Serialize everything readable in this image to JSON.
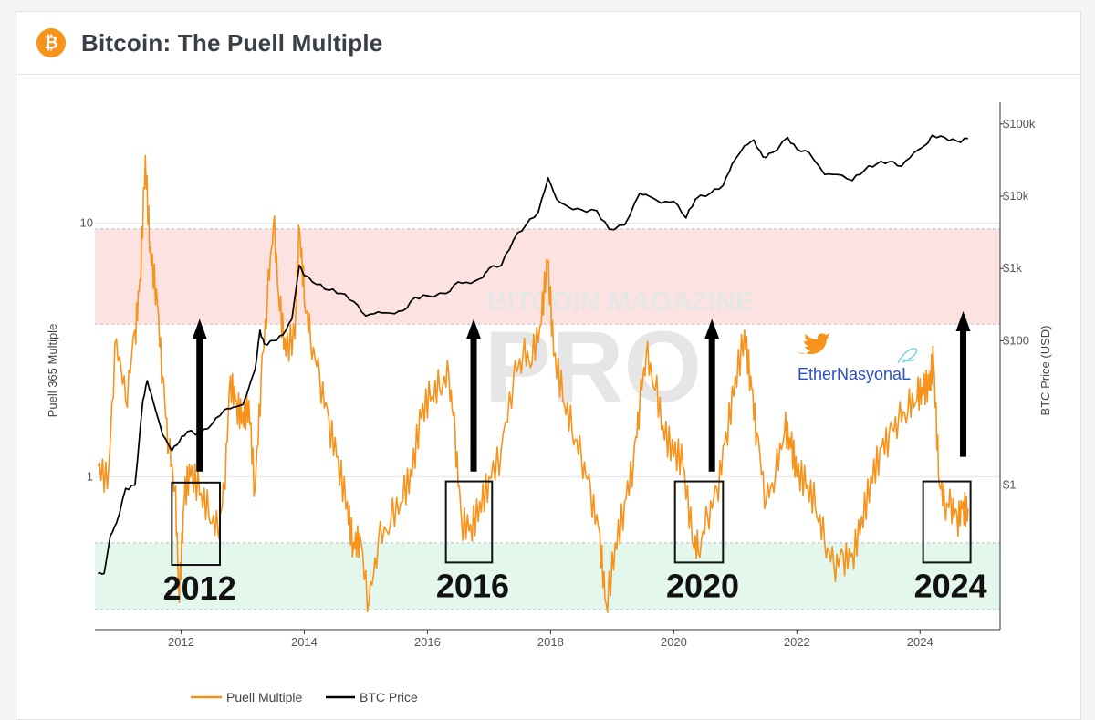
{
  "header": {
    "title": "Bitcoin: The Puell Multiple",
    "logo_color": "#f7931a",
    "logo_glyph": "₿",
    "logo_icon": "bitcoin-logo-icon"
  },
  "watermark": {
    "top_text": "BITCOIN MAGAZINE",
    "main_text": "PRO"
  },
  "annotation": {
    "text": "EtherNasyonaL",
    "bird_icon": "twitter-bird-icon",
    "bird_color": "#f7931a"
  },
  "chart_data": {
    "type": "line",
    "x_axis": {
      "ticks": [
        "2012",
        "2014",
        "2016",
        "2018",
        "2020",
        "2022",
        "2024"
      ],
      "range": [
        2010.6,
        2025.3
      ]
    },
    "y_left": {
      "label": "Puell 365 Multiple",
      "scale": "log",
      "ticks": [
        "10",
        "1"
      ],
      "range": [
        0.25,
        30
      ]
    },
    "y_right": {
      "label": "BTC Price (USD)",
      "scale": "log",
      "ticks": [
        "$100k",
        "$10k",
        "$1k",
        "$100",
        "$1"
      ],
      "range": [
        0.01,
        200000
      ]
    },
    "bands": [
      {
        "name": "overvalued",
        "range": [
          4,
          9.5
        ],
        "color": "#fde2e2"
      },
      {
        "name": "undervalued",
        "range": [
          0.3,
          0.55
        ],
        "color": "#e4f7ec"
      }
    ],
    "series": [
      {
        "name": "Puell Multiple",
        "color": "#f7931a",
        "axis": "left",
        "points": [
          [
            2010.65,
            1.1
          ],
          [
            2010.8,
            0.9
          ],
          [
            2010.95,
            3.5
          ],
          [
            2011.1,
            2.0
          ],
          [
            2011.25,
            3.8
          ],
          [
            2011.33,
            6.0
          ],
          [
            2011.42,
            18.5
          ],
          [
            2011.5,
            8.0
          ],
          [
            2011.6,
            5.5
          ],
          [
            2011.7,
            2.5
          ],
          [
            2011.8,
            1.3
          ],
          [
            2011.9,
            0.9
          ],
          [
            2011.97,
            0.32
          ],
          [
            2012.05,
            0.8
          ],
          [
            2012.15,
            1.0
          ],
          [
            2012.3,
            0.85
          ],
          [
            2012.45,
            0.7
          ],
          [
            2012.6,
            0.6
          ],
          [
            2012.7,
            0.9
          ],
          [
            2012.8,
            2.5
          ],
          [
            2012.9,
            2.0
          ],
          [
            2013.0,
            1.8
          ],
          [
            2013.1,
            2.0
          ],
          [
            2013.2,
            0.9
          ],
          [
            2013.3,
            2.5
          ],
          [
            2013.4,
            5.0
          ],
          [
            2013.5,
            10.0
          ],
          [
            2013.6,
            4.5
          ],
          [
            2013.7,
            3.0
          ],
          [
            2013.85,
            3.5
          ],
          [
            2013.92,
            9.5
          ],
          [
            2014.0,
            5.0
          ],
          [
            2014.1,
            3.5
          ],
          [
            2014.25,
            2.5
          ],
          [
            2014.4,
            1.7
          ],
          [
            2014.55,
            1.2
          ],
          [
            2014.7,
            0.8
          ],
          [
            2014.8,
            0.55
          ],
          [
            2014.9,
            0.6
          ],
          [
            2015.05,
            0.32
          ],
          [
            2015.2,
            0.55
          ],
          [
            2015.4,
            0.65
          ],
          [
            2015.6,
            0.8
          ],
          [
            2015.75,
            1.0
          ],
          [
            2015.9,
            1.7
          ],
          [
            2016.05,
            2.0
          ],
          [
            2016.2,
            2.2
          ],
          [
            2016.35,
            2.5
          ],
          [
            2016.45,
            1.5
          ],
          [
            2016.55,
            0.7
          ],
          [
            2016.7,
            0.65
          ],
          [
            2016.85,
            0.8
          ],
          [
            2017.0,
            1.0
          ],
          [
            2017.2,
            1.3
          ],
          [
            2017.4,
            2.5
          ],
          [
            2017.55,
            3.0
          ],
          [
            2017.7,
            2.8
          ],
          [
            2017.85,
            4.0
          ],
          [
            2017.95,
            7.0
          ],
          [
            2018.05,
            3.0
          ],
          [
            2018.2,
            2.0
          ],
          [
            2018.35,
            1.5
          ],
          [
            2018.5,
            1.2
          ],
          [
            2018.65,
            0.9
          ],
          [
            2018.8,
            0.6
          ],
          [
            2018.9,
            0.32
          ],
          [
            2019.05,
            0.55
          ],
          [
            2019.2,
            0.8
          ],
          [
            2019.35,
            1.2
          ],
          [
            2019.45,
            2.0
          ],
          [
            2019.55,
            3.0
          ],
          [
            2019.7,
            2.2
          ],
          [
            2019.85,
            1.4
          ],
          [
            2020.0,
            1.2
          ],
          [
            2020.15,
            1.1
          ],
          [
            2020.3,
            0.55
          ],
          [
            2020.4,
            0.5
          ],
          [
            2020.55,
            0.7
          ],
          [
            2020.7,
            0.9
          ],
          [
            2020.85,
            1.5
          ],
          [
            2021.0,
            2.5
          ],
          [
            2021.15,
            3.8
          ],
          [
            2021.25,
            2.5
          ],
          [
            2021.35,
            1.5
          ],
          [
            2021.5,
            0.8
          ],
          [
            2021.65,
            1.0
          ],
          [
            2021.8,
            1.5
          ],
          [
            2021.9,
            1.3
          ],
          [
            2022.0,
            1.0
          ],
          [
            2022.15,
            0.9
          ],
          [
            2022.3,
            0.75
          ],
          [
            2022.45,
            0.55
          ],
          [
            2022.6,
            0.45
          ],
          [
            2022.75,
            0.5
          ],
          [
            2022.9,
            0.5
          ],
          [
            2023.05,
            0.7
          ],
          [
            2023.2,
            1.0
          ],
          [
            2023.35,
            1.3
          ],
          [
            2023.5,
            1.5
          ],
          [
            2023.65,
            1.7
          ],
          [
            2023.8,
            1.8
          ],
          [
            2023.95,
            2.0
          ],
          [
            2024.05,
            2.1
          ],
          [
            2024.15,
            2.2
          ],
          [
            2024.22,
            2.8
          ],
          [
            2024.3,
            1.0
          ],
          [
            2024.4,
            0.75
          ],
          [
            2024.5,
            0.8
          ],
          [
            2024.6,
            0.7
          ],
          [
            2024.7,
            0.8
          ],
          [
            2024.78,
            0.75
          ]
        ]
      },
      {
        "name": "BTC Price",
        "color": "#000000",
        "axis": "right",
        "points": [
          [
            2010.65,
            0.06
          ],
          [
            2010.75,
            0.06
          ],
          [
            2010.85,
            0.2
          ],
          [
            2010.95,
            0.3
          ],
          [
            2011.1,
            0.9
          ],
          [
            2011.25,
            1.0
          ],
          [
            2011.38,
            15
          ],
          [
            2011.45,
            28
          ],
          [
            2011.55,
            14
          ],
          [
            2011.7,
            5
          ],
          [
            2011.85,
            3
          ],
          [
            2011.97,
            4
          ],
          [
            2012.1,
            5.5
          ],
          [
            2012.3,
            5
          ],
          [
            2012.5,
            7
          ],
          [
            2012.7,
            11
          ],
          [
            2012.85,
            12
          ],
          [
            2013.0,
            13
          ],
          [
            2013.2,
            40
          ],
          [
            2013.28,
            140
          ],
          [
            2013.35,
            90
          ],
          [
            2013.5,
            100
          ],
          [
            2013.65,
            120
          ],
          [
            2013.8,
            200
          ],
          [
            2013.92,
            1100
          ],
          [
            2014.0,
            800
          ],
          [
            2014.2,
            600
          ],
          [
            2014.4,
            500
          ],
          [
            2014.6,
            450
          ],
          [
            2014.8,
            350
          ],
          [
            2015.0,
            220
          ],
          [
            2015.2,
            250
          ],
          [
            2015.4,
            240
          ],
          [
            2015.6,
            260
          ],
          [
            2015.8,
            400
          ],
          [
            2016.0,
            420
          ],
          [
            2016.3,
            450
          ],
          [
            2016.5,
            650
          ],
          [
            2016.7,
            620
          ],
          [
            2016.9,
            750
          ],
          [
            2017.0,
            1000
          ],
          [
            2017.2,
            1100
          ],
          [
            2017.4,
            2500
          ],
          [
            2017.6,
            4000
          ],
          [
            2017.8,
            6000
          ],
          [
            2017.96,
            18000
          ],
          [
            2018.1,
            9000
          ],
          [
            2018.3,
            7000
          ],
          [
            2018.5,
            6500
          ],
          [
            2018.75,
            6300
          ],
          [
            2018.95,
            3500
          ],
          [
            2019.2,
            4000
          ],
          [
            2019.45,
            11000
          ],
          [
            2019.6,
            10000
          ],
          [
            2019.8,
            8000
          ],
          [
            2020.0,
            8500
          ],
          [
            2020.2,
            5000
          ],
          [
            2020.35,
            9000
          ],
          [
            2020.6,
            11000
          ],
          [
            2020.8,
            14000
          ],
          [
            2020.95,
            28000
          ],
          [
            2021.15,
            50000
          ],
          [
            2021.3,
            60000
          ],
          [
            2021.45,
            35000
          ],
          [
            2021.6,
            40000
          ],
          [
            2021.85,
            65000
          ],
          [
            2022.0,
            45000
          ],
          [
            2022.2,
            40000
          ],
          [
            2022.45,
            20000
          ],
          [
            2022.65,
            20000
          ],
          [
            2022.9,
            16500
          ],
          [
            2023.1,
            23000
          ],
          [
            2023.3,
            28000
          ],
          [
            2023.5,
            30000
          ],
          [
            2023.7,
            26000
          ],
          [
            2023.9,
            40000
          ],
          [
            2024.1,
            52000
          ],
          [
            2024.2,
            70000
          ],
          [
            2024.4,
            65000
          ],
          [
            2024.6,
            58000
          ],
          [
            2024.78,
            63000
          ]
        ]
      }
    ],
    "boxes": [
      {
        "x_range": [
          2011.85,
          2012.63
        ],
        "y_range": [
          0.45,
          0.95
        ],
        "label": "2012"
      },
      {
        "x_range": [
          2016.3,
          2017.05
        ],
        "y_range": [
          0.46,
          0.96
        ],
        "label": "2016"
      },
      {
        "x_range": [
          2020.02,
          2020.8
        ],
        "y_range": [
          0.46,
          0.96
        ],
        "label": "2020"
      },
      {
        "x_range": [
          2024.05,
          2024.82
        ],
        "y_range": [
          0.46,
          0.96
        ],
        "label": "2024"
      }
    ],
    "arrows": [
      {
        "x": 2012.3,
        "y_from": 1.05,
        "y_to": 4.2
      },
      {
        "x": 2016.75,
        "y_from": 1.05,
        "y_to": 4.2
      },
      {
        "x": 2020.62,
        "y_from": 1.05,
        "y_to": 4.2
      },
      {
        "x": 2024.7,
        "y_from": 1.2,
        "y_to": 4.5
      }
    ],
    "legend": {
      "placement": "bottom-left",
      "entries": [
        "Puell Multiple",
        "BTC Price"
      ]
    }
  }
}
